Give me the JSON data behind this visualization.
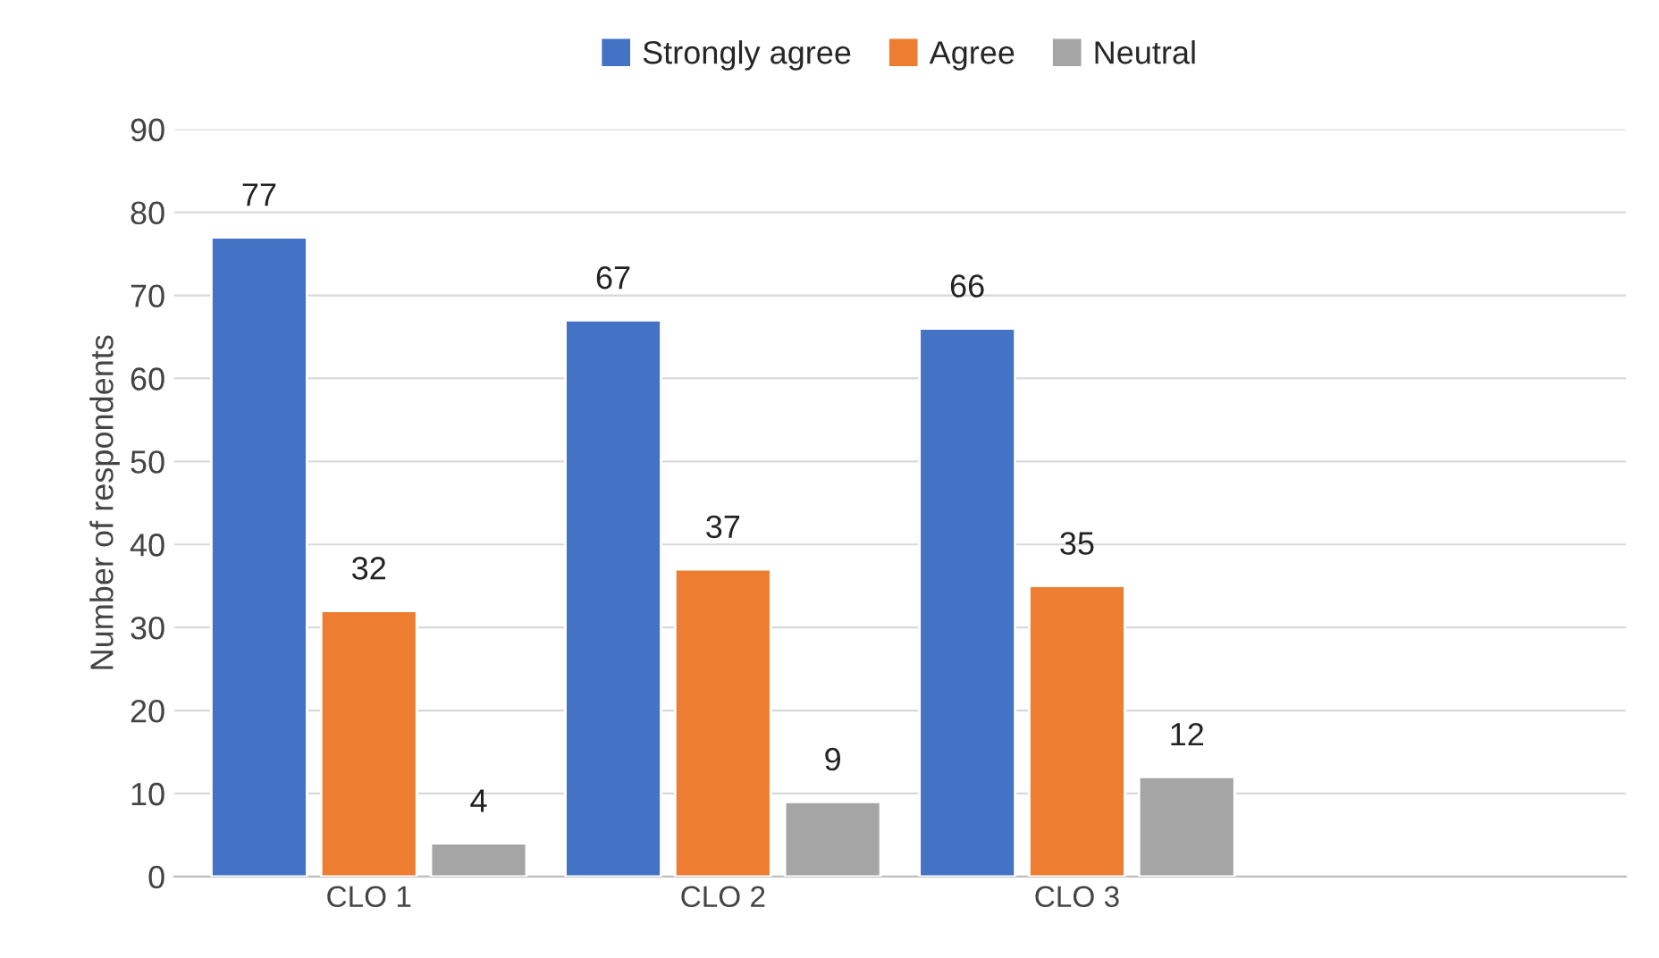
{
  "chart_data": {
    "type": "bar",
    "categories": [
      "CLO 1",
      "CLO 2",
      "CLO 3",
      null
    ],
    "ylabel": "Number of respondents",
    "series": [
      {
        "name": "Strongly agree",
        "color": "#4472c4",
        "values": [
          77,
          67,
          66,
          null
        ]
      },
      {
        "name": "Agree",
        "color": "#ed7d31",
        "values": [
          32,
          37,
          35,
          null
        ]
      },
      {
        "name": "Neutral",
        "color": "#a5a5a5",
        "values": [
          4,
          9,
          12,
          null
        ]
      }
    ],
    "ylim": [
      0,
      90
    ],
    "yticks": [
      0,
      10,
      20,
      30,
      40,
      50,
      60,
      70,
      80,
      90
    ],
    "grid": "y",
    "legend": "top",
    "data_labels": true
  }
}
